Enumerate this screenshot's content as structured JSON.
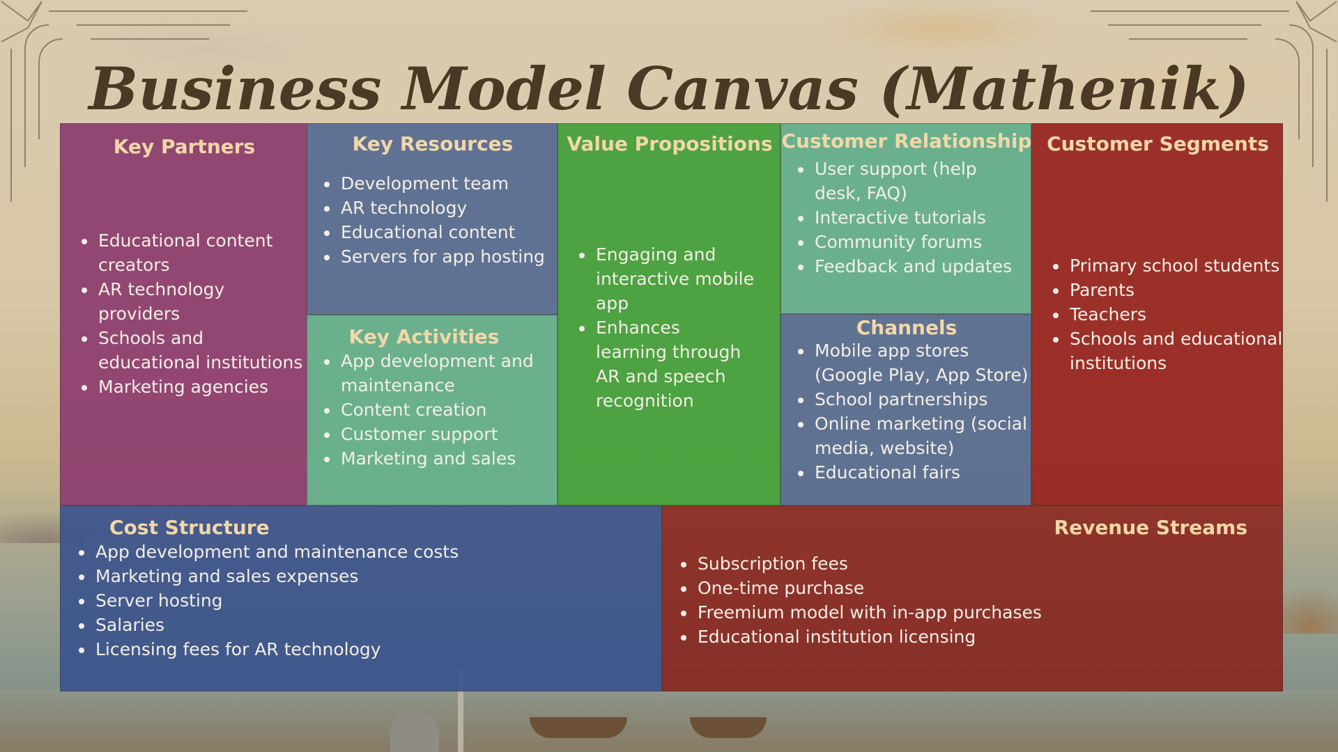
{
  "title": "Business Model Canvas (Mathenik)",
  "colors": {
    "key_partners": "#8c3c6e",
    "key_resources": "#5a6e91",
    "key_activities": "#64af8c",
    "value_propositions": "#46a03c",
    "customer_relationship": "#64af8c",
    "channels": "#5a6e91",
    "customer_segments": "#96231e",
    "cost_structure": "#37508c",
    "revenue_streams": "#871e19",
    "heading": "#f2d7a8"
  },
  "key_partners": {
    "heading": "Key Partners",
    "items": [
      "Educational content creators",
      "AR technology providers",
      "Schools and educational institutions",
      "Marketing agencies"
    ]
  },
  "key_resources": {
    "heading": "Key Resources",
    "items": [
      "Development team",
      "AR technology",
      "Educational content",
      "Servers for app hosting"
    ]
  },
  "key_activities": {
    "heading": "Key Activities",
    "items": [
      "App development and maintenance",
      "Content creation",
      "Customer support",
      "Marketing and sales"
    ]
  },
  "value_propositions": {
    "heading": "Value Propositions",
    "items": [
      "Engaging and interactive mobile app",
      "Enhances learning through AR and speech recognition"
    ]
  },
  "customer_relationship": {
    "heading": "Customer Relationship",
    "items": [
      "User support (help desk, FAQ)",
      "Interactive tutorials",
      "Community forums",
      "Feedback and updates"
    ]
  },
  "channels": {
    "heading": "Channels",
    "items": [
      "Mobile app stores (Google Play, App Store)",
      "School partnerships",
      "Online marketing (social media, website)",
      "Educational fairs"
    ]
  },
  "customer_segments": {
    "heading": "Customer Segments",
    "items": [
      "Primary school students",
      "Parents",
      "Teachers",
      "Schools and educational institutions"
    ]
  },
  "cost_structure": {
    "heading": "Cost Structure",
    "items": [
      "App development and maintenance costs",
      "Marketing and sales expenses",
      "Server hosting",
      "Salaries",
      "Licensing fees for AR technology"
    ]
  },
  "revenue_streams": {
    "heading": "Revenue Streams",
    "items": [
      "Subscription fees",
      "One-time purchase",
      "Freemium model with in-app purchases",
      "Educational institution licensing"
    ]
  }
}
